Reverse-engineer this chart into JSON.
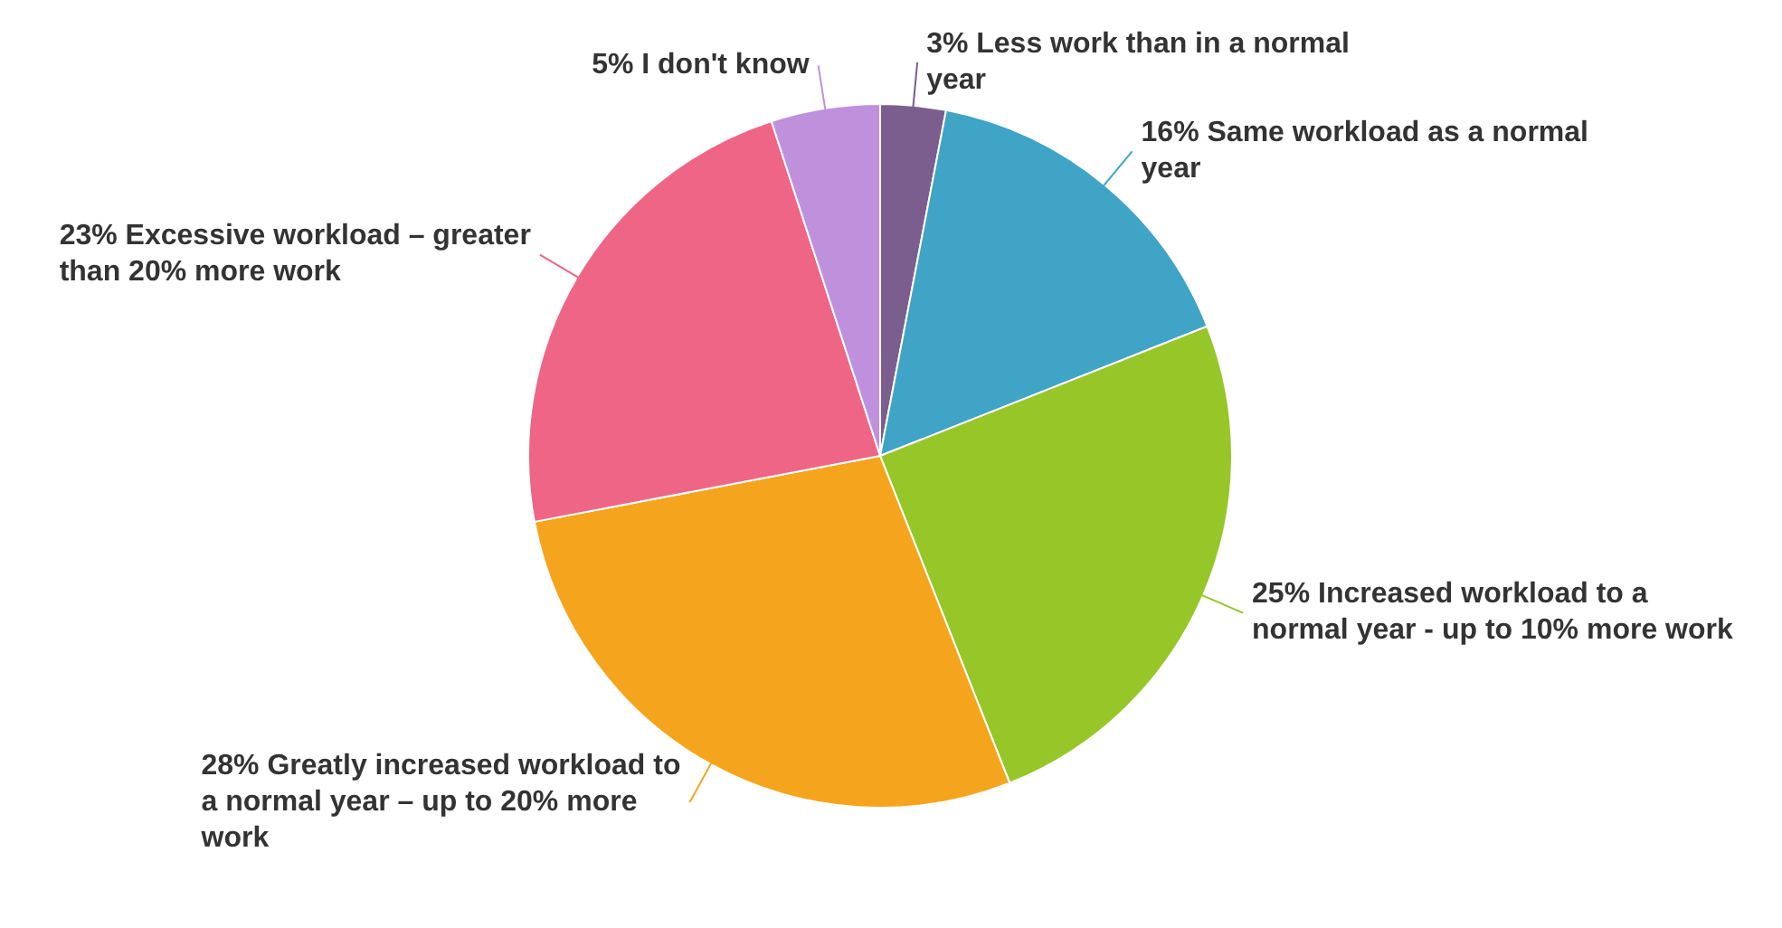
{
  "chart_data": {
    "type": "pie",
    "categories": [
      "Less work than in a normal year",
      "Same workload as a normal year",
      "Increased workload to a normal year - up to 10% more work",
      "Greatly increased workload to a normal year – up to 20% more work",
      "Excessive workload – greater than 20% more work",
      "I don't know"
    ],
    "values": [
      3,
      16,
      25,
      28,
      23,
      5
    ],
    "value_labels": [
      "3%",
      "16%",
      "25%",
      "28%",
      "23%",
      "5%"
    ],
    "colors": [
      "#7b5e8e",
      "#3fa4c5",
      "#97c628",
      "#f5a51d",
      "#ef6586",
      "#bf91dd"
    ],
    "legend": false
  }
}
